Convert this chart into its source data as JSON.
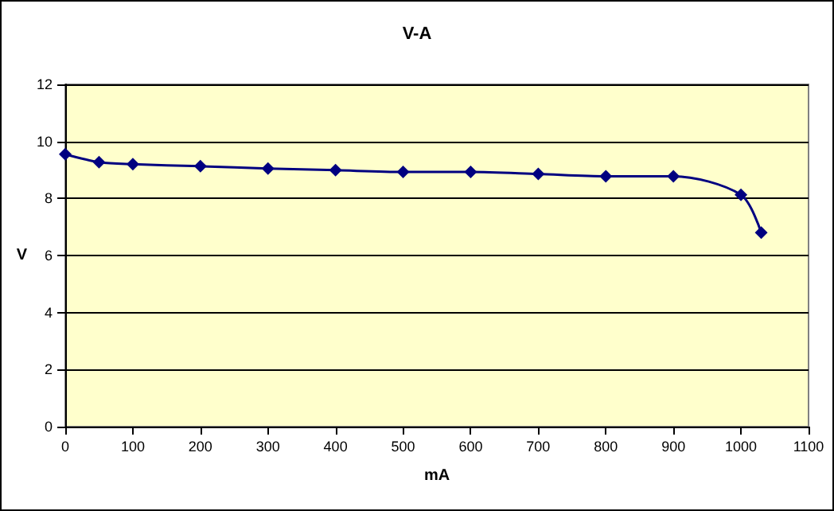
{
  "chart_data": {
    "type": "line",
    "title": "V-A",
    "xlabel": "mA",
    "ylabel": "V",
    "x": [
      0,
      50,
      100,
      200,
      300,
      400,
      500,
      600,
      700,
      800,
      900,
      1000,
      1030
    ],
    "series": [
      {
        "color": "#000080",
        "values": [
          9.55,
          9.27,
          9.2,
          9.13,
          9.05,
          8.99,
          8.93,
          8.93,
          8.86,
          8.78,
          8.78,
          8.13,
          6.8
        ]
      }
    ],
    "xlim": [
      0,
      1100
    ],
    "xticks": [
      0,
      100,
      200,
      300,
      400,
      500,
      600,
      700,
      800,
      900,
      1000,
      1100
    ],
    "ylim": [
      0,
      12
    ],
    "yticks": [
      0,
      2,
      4,
      6,
      8,
      10,
      12
    ],
    "grid": "y",
    "marker": "diamond",
    "line_style": "solid"
  }
}
